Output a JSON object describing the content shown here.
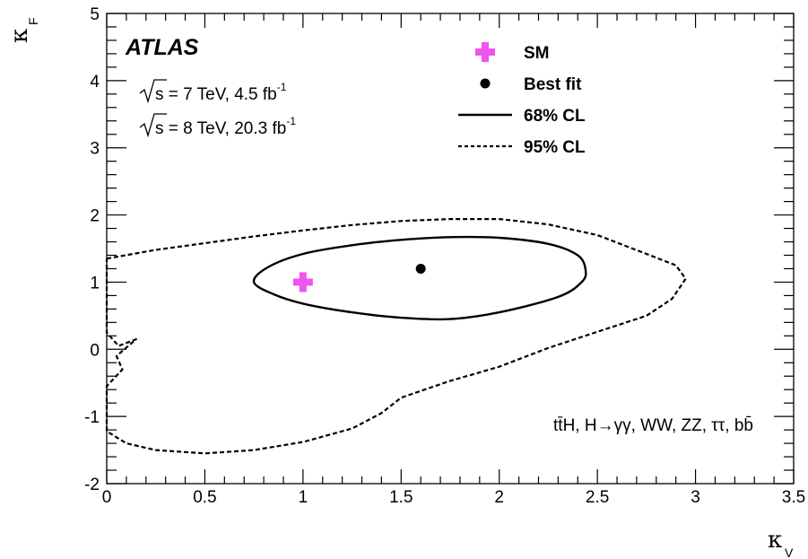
{
  "chart_data": {
    "type": "contour",
    "xlabel": "κ",
    "xlabel_sub": "V",
    "ylabel": "κ",
    "ylabel_sub": "F",
    "xlim": [
      0,
      3.5
    ],
    "ylim": [
      -2,
      5
    ],
    "x_ticks": [
      0,
      0.5,
      1,
      1.5,
      2,
      2.5,
      3,
      3.5
    ],
    "x_tick_labels": [
      "0",
      "0.5",
      "1",
      "1.5",
      "2",
      "2.5",
      "3",
      "3.5"
    ],
    "y_ticks": [
      -2,
      -1,
      0,
      1,
      2,
      3,
      4,
      5
    ],
    "y_tick_labels": [
      "-2",
      "-1",
      "0",
      "1",
      "2",
      "3",
      "4",
      "5"
    ],
    "experiment_label": "ATLAS",
    "info_lines": [
      {
        "sqrt": "s",
        "text": " = 7 TeV,  4.5 fb",
        "sup": "-1"
      },
      {
        "sqrt": "s",
        "text": " = 8 TeV,  20.3 fb",
        "sup": "-1"
      }
    ],
    "channels_label": "tt̄H, H→γγ, WW, ZZ, ττ, bb̄",
    "legend": [
      {
        "label": "SM",
        "kind": "marker-cross",
        "color": "#ee55ee"
      },
      {
        "label": "Best fit",
        "kind": "marker-dot",
        "color": "#000000"
      },
      {
        "label": "68% CL",
        "kind": "solid-line",
        "color": "#000000"
      },
      {
        "label": "95% CL",
        "kind": "dashed-line",
        "color": "#000000"
      }
    ],
    "sm_point": {
      "x": 1.0,
      "y": 1.0
    },
    "best_fit": {
      "x": 1.6,
      "y": 1.2
    },
    "contours": [
      {
        "name": "68% CL",
        "style": "solid",
        "points": [
          [
            0.75,
            1.0
          ],
          [
            0.82,
            1.22
          ],
          [
            1.0,
            1.42
          ],
          [
            1.25,
            1.55
          ],
          [
            1.5,
            1.63
          ],
          [
            1.75,
            1.67
          ],
          [
            2.0,
            1.66
          ],
          [
            2.25,
            1.57
          ],
          [
            2.4,
            1.4
          ],
          [
            2.44,
            1.18
          ],
          [
            2.42,
            1.0
          ],
          [
            2.3,
            0.78
          ],
          [
            2.0,
            0.55
          ],
          [
            1.75,
            0.45
          ],
          [
            1.5,
            0.47
          ],
          [
            1.25,
            0.55
          ],
          [
            1.0,
            0.68
          ],
          [
            0.85,
            0.82
          ],
          [
            0.75,
            1.0
          ]
        ]
      },
      {
        "name": "95% CL",
        "style": "dashed",
        "points": [
          [
            0.0,
            1.35
          ],
          [
            0.25,
            1.48
          ],
          [
            0.5,
            1.58
          ],
          [
            0.75,
            1.68
          ],
          [
            1.0,
            1.77
          ],
          [
            1.25,
            1.85
          ],
          [
            1.5,
            1.91
          ],
          [
            1.75,
            1.94
          ],
          [
            2.0,
            1.94
          ],
          [
            2.25,
            1.86
          ],
          [
            2.5,
            1.7
          ],
          [
            2.75,
            1.42
          ],
          [
            2.9,
            1.25
          ],
          [
            2.95,
            1.05
          ],
          [
            2.88,
            0.75
          ],
          [
            2.75,
            0.5
          ],
          [
            2.5,
            0.26
          ],
          [
            2.25,
            0.02
          ],
          [
            2.0,
            -0.26
          ],
          [
            1.75,
            -0.47
          ],
          [
            1.5,
            -0.72
          ],
          [
            1.4,
            -0.95
          ],
          [
            1.25,
            -1.18
          ],
          [
            1.0,
            -1.38
          ],
          [
            0.75,
            -1.5
          ],
          [
            0.5,
            -1.55
          ],
          [
            0.25,
            -1.5
          ],
          [
            0.1,
            -1.4
          ],
          [
            0.0,
            -1.22
          ],
          [
            0.0,
            -0.55
          ],
          [
            0.08,
            -0.3
          ],
          [
            0.05,
            -0.1
          ],
          [
            0.15,
            0.15
          ],
          [
            0.06,
            0.05
          ],
          [
            0.0,
            0.25
          ],
          [
            0.0,
            1.35
          ]
        ]
      }
    ],
    "grid": false
  }
}
